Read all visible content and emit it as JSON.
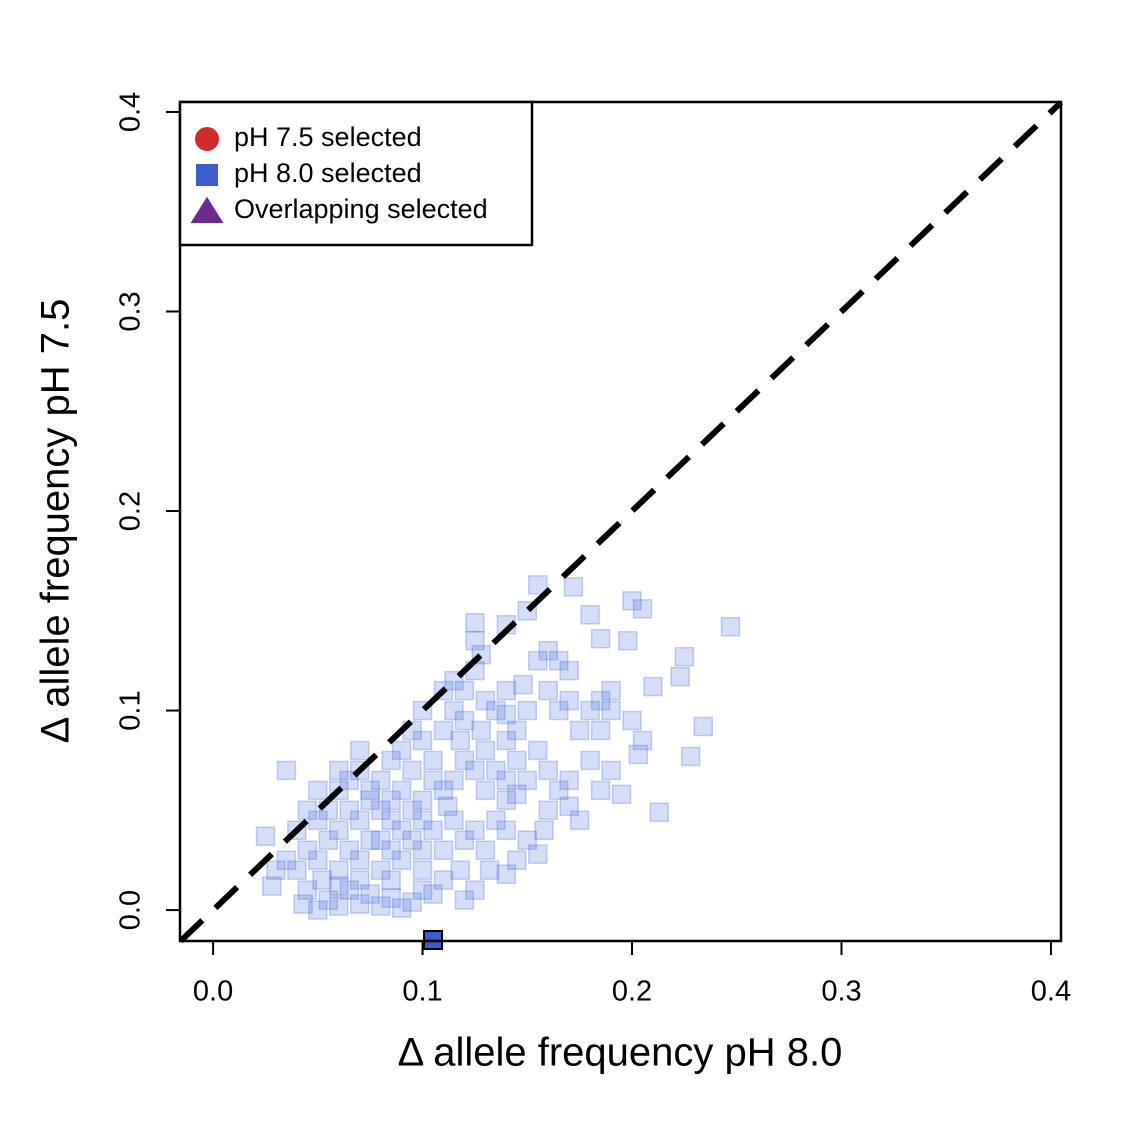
{
  "chart_data": {
    "type": "scatter",
    "xlabel": "Δ allele frequency pH 8.0",
    "ylabel": "Δ allele frequency pH 7.5",
    "xlim": [
      -0.0158,
      0.4048
    ],
    "ylim": [
      -0.0155,
      0.405
    ],
    "xticks": [
      {
        "value": 0,
        "label": "0.0"
      },
      0.1,
      0.2,
      0.3,
      0.4
    ],
    "yticks": [
      {
        "value": 0,
        "label": "0.0"
      },
      0.1,
      0.2,
      0.3,
      0.4
    ],
    "legend": "top-left",
    "reference_line": "y=x",
    "series": [
      {
        "color": "#4169e1",
        "marker": "square",
        "x": [
          0.05,
          0.055,
          0.06,
          0.065,
          0.07,
          0.075,
          0.08,
          0.085,
          0.09,
          0.095,
          0.1,
          0.105,
          0.045,
          0.04,
          0.045,
          0.05,
          0.055,
          0.06,
          0.065,
          0.07,
          0.075,
          0.08,
          0.085,
          0.09,
          0.095,
          0.1,
          0.105,
          0.11,
          0.115,
          0.12,
          0.125,
          0.13,
          0.135,
          0.14,
          0.12,
          0.125,
          0.118,
          0.132,
          0.14,
          0.145,
          0.15,
          0.155,
          0.158,
          0.14,
          0.13,
          0.125,
          0.12,
          0.13,
          0.135,
          0.128,
          0.12,
          0.115,
          0.11,
          0.1,
          0.105,
          0.095,
          0.09,
          0.085,
          0.08,
          0.075,
          0.07,
          0.065,
          0.06,
          0.055,
          0.05,
          0.045,
          0.06,
          0.065,
          0.07,
          0.08,
          0.085,
          0.09,
          0.095,
          0.1,
          0.11,
          0.115,
          0.12,
          0.125,
          0.13,
          0.135,
          0.14,
          0.145,
          0.15,
          0.14,
          0.145,
          0.15,
          0.16,
          0.165,
          0.155,
          0.16,
          0.165,
          0.17,
          0.16,
          0.155,
          0.165,
          0.17,
          0.175,
          0.18,
          0.185,
          0.19,
          0.19,
          0.185,
          0.18,
          0.17,
          0.175,
          0.185,
          0.19,
          0.195,
          0.17,
          0.16,
          0.145,
          0.14,
          0.128,
          0.125,
          0.15,
          0.035,
          0.03,
          0.04,
          0.05,
          0.06,
          0.07,
          0.075,
          0.085,
          0.095,
          0.1,
          0.11,
          0.115,
          0.105,
          0.1,
          0.09,
          0.08,
          0.07,
          0.06,
          0.11,
          0.1,
          0.085,
          0.052,
          0.043,
          0.14,
          0.148,
          0.118,
          0.112,
          0.247,
          0.234,
          0.228,
          0.213,
          0.225,
          0.223,
          0.21,
          0.205,
          0.203,
          0.2,
          0.2,
          0.205,
          0.198,
          0.185,
          0.172,
          0.18,
          0.155,
          0.125,
          0.14,
          0.035,
          0.025,
          0.028
        ],
        "y": [
          0.0,
          0.005,
          0.002,
          0.01,
          0.003,
          0.008,
          0.002,
          0.006,
          0.001,
          0.004,
          0.01,
          0.008,
          0.01,
          0.02,
          0.03,
          0.025,
          0.035,
          0.02,
          0.03,
          0.025,
          0.035,
          0.02,
          0.03,
          0.025,
          0.035,
          0.03,
          0.04,
          0.03,
          0.045,
          0.035,
          0.04,
          0.03,
          0.045,
          0.04,
          0.005,
          0.01,
          0.02,
          0.02,
          0.018,
          0.025,
          0.035,
          0.028,
          0.04,
          0.055,
          0.06,
          0.07,
          0.075,
          0.08,
          0.07,
          0.09,
          0.095,
          0.1,
          0.09,
          0.085,
          0.075,
          0.07,
          0.06,
          0.055,
          0.05,
          0.06,
          0.045,
          0.05,
          0.04,
          0.05,
          0.045,
          0.05,
          0.06,
          0.065,
          0.07,
          0.065,
          0.075,
          0.08,
          0.09,
          0.1,
          0.11,
          0.115,
          0.11,
          0.12,
          0.105,
          0.1,
          0.11,
          0.09,
          0.1,
          0.085,
          0.075,
          0.065,
          0.07,
          0.06,
          0.08,
          0.11,
          0.1,
          0.12,
          0.13,
          0.125,
          0.125,
          0.105,
          0.09,
          0.1,
          0.105,
          0.1,
          0.11,
          0.09,
          0.075,
          0.065,
          0.045,
          0.06,
          0.07,
          0.058,
          0.052,
          0.05,
          0.058,
          0.065,
          0.128,
          0.135,
          0.15,
          0.025,
          0.02,
          0.04,
          0.06,
          0.07,
          0.08,
          0.055,
          0.045,
          0.05,
          0.055,
          0.06,
          0.065,
          0.065,
          0.045,
          0.04,
          0.035,
          0.015,
          0.012,
          0.015,
          0.02,
          0.015,
          0.015,
          0.003,
          0.098,
          0.113,
          0.085,
          0.052,
          0.142,
          0.092,
          0.077,
          0.049,
          0.127,
          0.117,
          0.112,
          0.085,
          0.078,
          0.155,
          0.095,
          0.151,
          0.135,
          0.136,
          0.162,
          0.148,
          0.163,
          0.144,
          0.143,
          0.07,
          0.037,
          0.012
        ]
      },
      {
        "name": "pH 7.5 selected",
        "color": "#d02b2b",
        "marker": "circle",
        "x": [],
        "y": []
      },
      {
        "name": "pH 8.0 selected",
        "color": "#3a5fcd",
        "marker": "square",
        "x": [
          0.105
        ],
        "y": [
          -0.015
        ]
      },
      {
        "name": "Overlapping selected",
        "color": "#6b2a90",
        "marker": "triangle",
        "x": [],
        "y": []
      }
    ]
  }
}
